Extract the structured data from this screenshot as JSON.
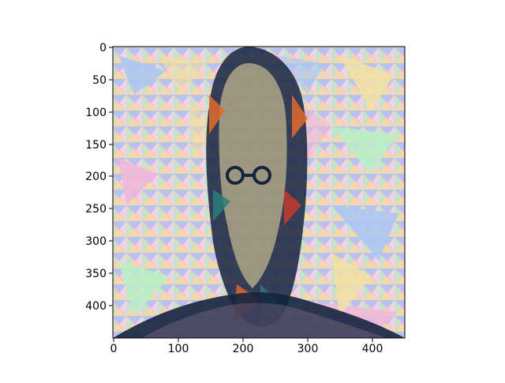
{
  "figure": {
    "image_alt": "stylized mosaic portrait",
    "colors": {
      "background": "#ffffff",
      "pastel_pink": "#f0b7d8",
      "pastel_blue": "#a9c7f2",
      "pastel_yellow": "#f2e0a3",
      "pastel_green": "#b9f0c6",
      "dark_navy": "#16233f",
      "accent_orange": "#e36b2c",
      "accent_red": "#c93b2b",
      "accent_teal": "#2a7f7a"
    }
  },
  "chart_data": {
    "type": "image",
    "x_ticks": [
      "0",
      "100",
      "200",
      "300",
      "400"
    ],
    "y_ticks": [
      "0",
      "50",
      "100",
      "150",
      "200",
      "250",
      "300",
      "350",
      "400"
    ],
    "xlim": [
      0,
      450
    ],
    "ylim": [
      450,
      0
    ],
    "grid": false
  }
}
